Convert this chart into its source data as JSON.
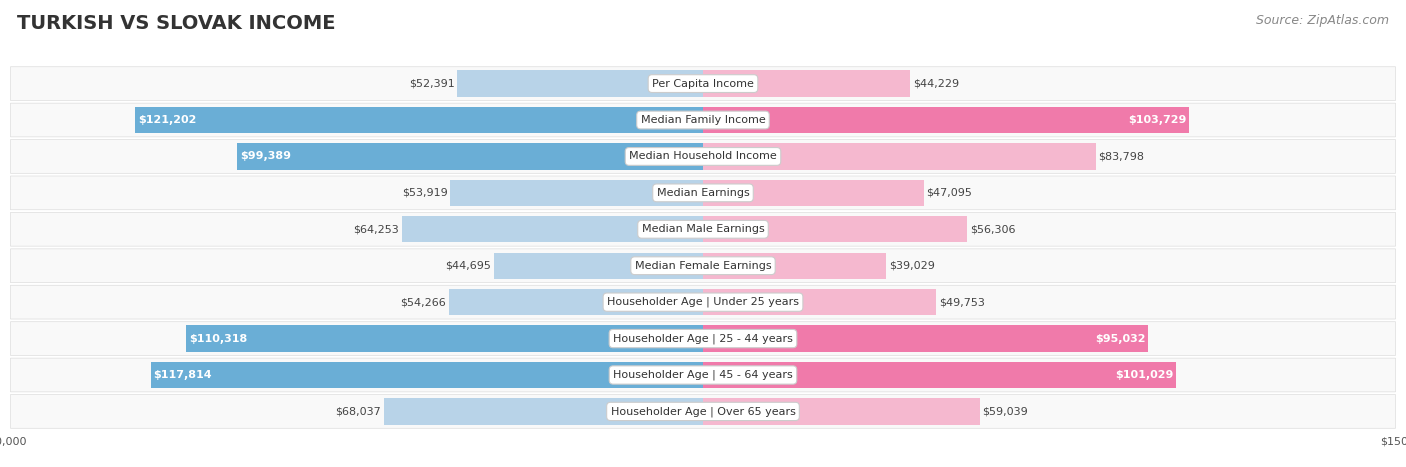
{
  "title": "TURKISH VS SLOVAK INCOME",
  "source": "Source: ZipAtlas.com",
  "categories": [
    "Per Capita Income",
    "Median Family Income",
    "Median Household Income",
    "Median Earnings",
    "Median Male Earnings",
    "Median Female Earnings",
    "Householder Age | Under 25 years",
    "Householder Age | 25 - 44 years",
    "Householder Age | 45 - 64 years",
    "Householder Age | Over 65 years"
  ],
  "turkish_values": [
    52391,
    121202,
    99389,
    53919,
    64253,
    44695,
    54266,
    110318,
    117814,
    68037
  ],
  "slovak_values": [
    44229,
    103729,
    83798,
    47095,
    56306,
    39029,
    49753,
    95032,
    101029,
    59039
  ],
  "max_value": 150000,
  "turkish_color_strong": "#6aaed6",
  "turkish_color_light": "#b8d3e8",
  "slovak_color_strong": "#f07aaa",
  "slovak_color_light": "#f5b8cf",
  "background_color": "#ffffff",
  "row_bg_odd": "#f7f7f7",
  "row_bg_even": "#ffffff",
  "label_box_color": "#ffffff",
  "title_fontsize": 14,
  "source_fontsize": 9,
  "value_fontsize": 8,
  "category_fontsize": 8,
  "axis_label_fontsize": 8,
  "legend_fontsize": 9,
  "threshold_strong": 90000
}
